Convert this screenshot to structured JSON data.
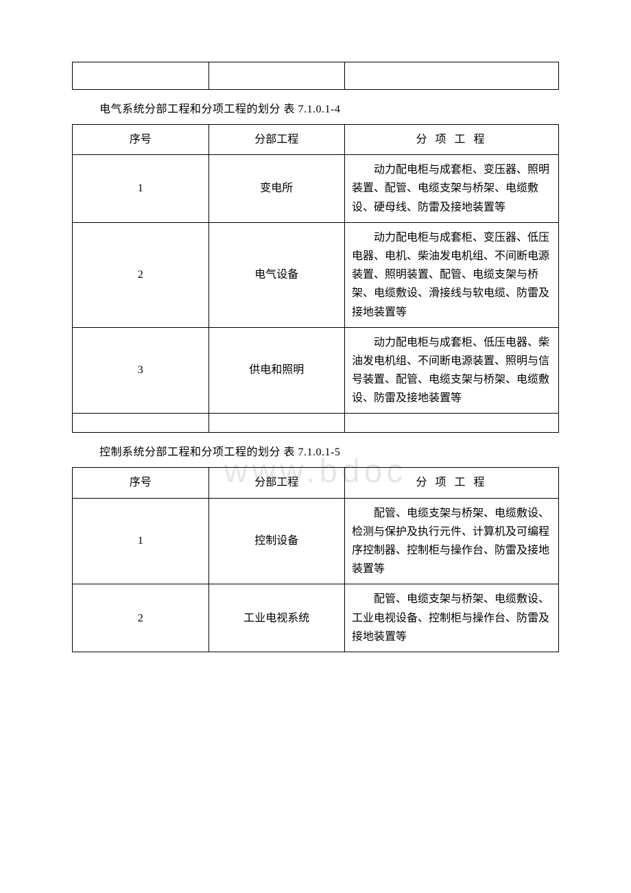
{
  "watermark": "www.bdoc",
  "table0": {
    "columns": [
      "col-a",
      "col-b",
      "col-c"
    ]
  },
  "caption1": "电气系统分部工程和分项工程的划分 表 7.1.0.1-4",
  "table1": {
    "header": {
      "a": "序号",
      "b": "分部工程",
      "c": "分 项 工 程"
    },
    "rows": [
      {
        "a": "1",
        "b": "变电所",
        "c": "动力配电柜与成套柜、变压器、照明装置、配管、电缆支架与桥架、电缆敷设、硬母线、防雷及接地装置等"
      },
      {
        "a": "2",
        "b": "电气设备",
        "c": "动力配电柜与成套柜、变压器、低压电器、电机、柴油发电机组、不间断电源装置、照明装置、配管、电缆支架与桥架、电缆敷设、滑接线与软电缆、防雷及接地装置等"
      },
      {
        "a": "3",
        "b": "供电和照明",
        "c": "动力配电柜与成套柜、低压电器、柴油发电机组、不间断电源装置、照明与信号装置、配管、电缆支架与桥架、电缆敷设、防雷及接地装置等"
      }
    ]
  },
  "caption2": "控制系统分部工程和分项工程的划分 表 7.1.0.1-5",
  "table2": {
    "header": {
      "a": "序号",
      "b": "分部工程",
      "c": "分 项 工 程"
    },
    "rows": [
      {
        "a": "1",
        "b": "控制设备",
        "c": "配管、电缆支架与桥架、电缆敷设、检测与保护及执行元件、计算机及可编程序控制器、控制柜与操作台、防雷及接地装置等"
      },
      {
        "a": "2",
        "b": "工业电视系统",
        "c": "配管、电缆支架与桥架、电缆敷设、工业电视设备、控制柜与操作台、防雷及接地装置等"
      }
    ]
  }
}
